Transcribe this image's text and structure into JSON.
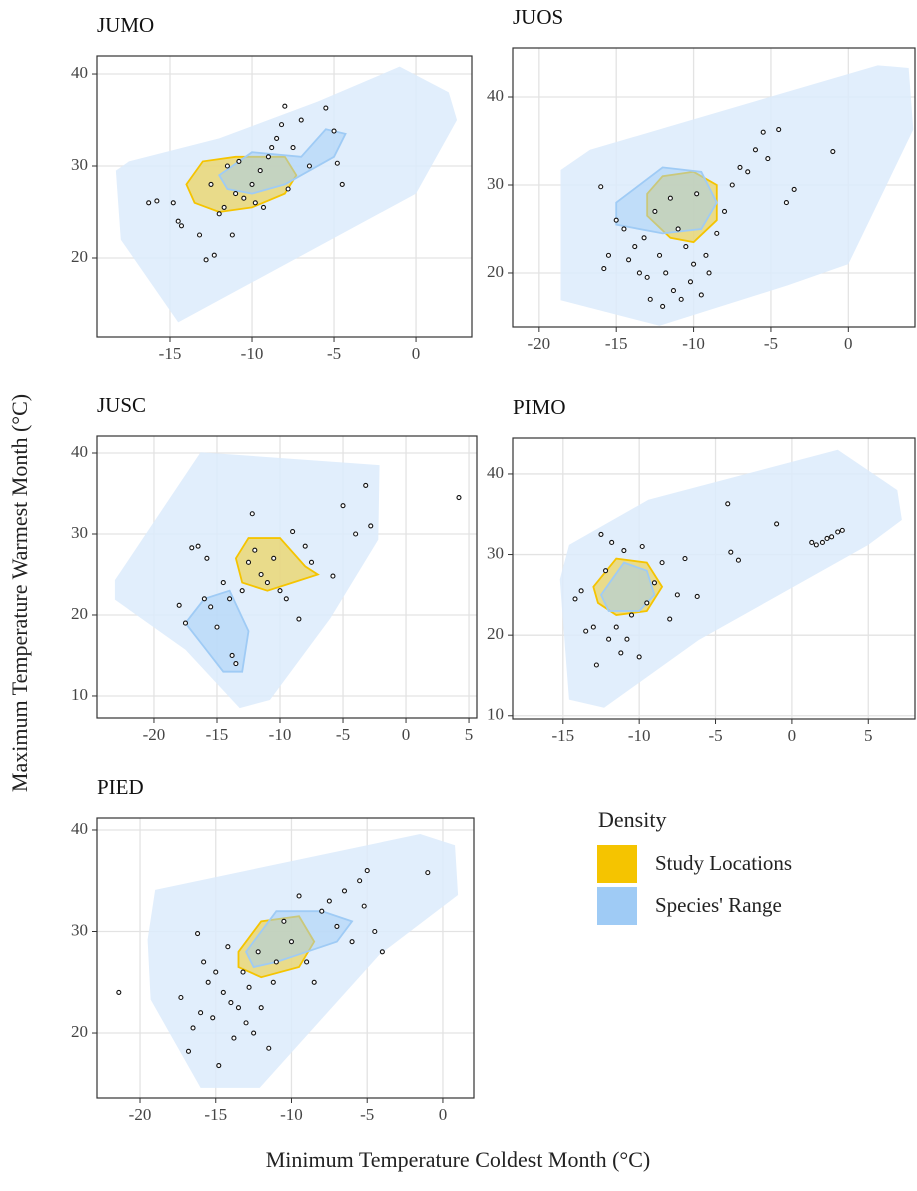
{
  "x_label": "Minimum Temperature Coldest Month (°C)",
  "y_label": "Maximum Temperature Warmest Month (°C)",
  "legend": {
    "title": "Density",
    "entries": [
      {
        "name": "Study Locations",
        "color": "#f5c400"
      },
      {
        "name": "Species' Range",
        "color": "#9fcbf5"
      }
    ]
  },
  "range_color": "#dcebfb",
  "chart_data": [
    {
      "type": "scatter",
      "title": "JUMO",
      "xlim": [
        -19.45,
        3.41
      ],
      "ylim": [
        11.41,
        41.96
      ],
      "xticks": [
        -15,
        -10,
        -5,
        0
      ],
      "yticks": [
        20,
        30,
        40
      ],
      "grid": true,
      "x": [
        -16.3,
        -15.8,
        -14.8,
        -14.5,
        -14.3,
        -13.2,
        -12.8,
        -12.3,
        -12.5,
        -12,
        -11.7,
        -11.5,
        -11.2,
        -11,
        -10.8,
        -10.5,
        -10,
        -9.8,
        -9.5,
        -9.3,
        -9,
        -8.8,
        -8.5,
        -8.2,
        -8,
        -7.8,
        -7.5,
        -7,
        -6.5,
        -5.5,
        -5,
        -4.8,
        -4.5
      ],
      "y": [
        26,
        26.2,
        26,
        24,
        23.5,
        22.5,
        19.8,
        20.3,
        28,
        24.8,
        25.5,
        30,
        22.5,
        27,
        30.5,
        26.5,
        28,
        26,
        29.5,
        25.5,
        31,
        32,
        33,
        34.5,
        36.5,
        27.5,
        32,
        35,
        30,
        36.3,
        33.8,
        30.3,
        28
      ],
      "range_hull": {
        "x": [
          -18.3,
          -17.5,
          -12,
          -6,
          -1,
          2,
          2.5,
          0,
          -14.5,
          -18
        ],
        "y": [
          29.5,
          30.5,
          33,
          37,
          40.8,
          38,
          35,
          27,
          13,
          22
        ]
      },
      "range_density": {
        "x": [
          -12,
          -10,
          -7,
          -5.5,
          -4.3,
          -5,
          -8,
          -10,
          -11.5
        ],
        "y": [
          29,
          31.5,
          31,
          34,
          33.5,
          31,
          28,
          27,
          27.5
        ]
      },
      "study_density": {
        "x": [
          -14,
          -13,
          -11,
          -8,
          -7.3,
          -8,
          -10,
          -12,
          -13.5
        ],
        "y": [
          28,
          30.5,
          31,
          31,
          29,
          27,
          25.5,
          25,
          26
        ]
      }
    },
    {
      "type": "scatter",
      "title": "JUOS",
      "xlim": [
        -21.67,
        4.31
      ],
      "ylim": [
        13.86,
        45.57
      ],
      "xticks": [
        -20,
        -15,
        -10,
        -5,
        0
      ],
      "yticks": [
        20,
        30,
        40
      ],
      "grid": true,
      "x": [
        -16,
        -15.8,
        -15.5,
        -15,
        -14.5,
        -14.2,
        -13.8,
        -13.5,
        -13.2,
        -13,
        -12.8,
        -12.5,
        -12.2,
        -12,
        -11.8,
        -11.5,
        -11.3,
        -11,
        -10.8,
        -10.5,
        -10.2,
        -10,
        -9.8,
        -9.5,
        -9.2,
        -9,
        -8.5,
        -8,
        -7.5,
        -7,
        -6.5,
        -6,
        -5.5,
        -5.2,
        -4.5,
        -4,
        -3.5,
        -1
      ],
      "y": [
        29.8,
        20.5,
        22,
        26,
        25,
        21.5,
        23,
        20,
        24,
        19.5,
        17,
        27,
        22,
        16.2,
        20,
        28.5,
        18,
        25,
        17,
        23,
        19,
        21,
        29,
        17.5,
        22,
        20,
        24.5,
        27,
        30,
        32,
        31.5,
        34,
        36,
        33,
        36.3,
        28,
        29.5,
        33.8
      ],
      "range_hull": {
        "x": [
          -18.6,
          -16.7,
          1.9,
          3.9,
          4.2,
          0,
          -3.9,
          -12.2,
          -18.6
        ],
        "y": [
          31.7,
          34,
          43.6,
          43.3,
          36.3,
          21,
          18.6,
          14,
          16.9
        ]
      },
      "range_density": {
        "x": [
          -15,
          -12,
          -9.5,
          -8.5,
          -9.5,
          -12,
          -15
        ],
        "y": [
          28,
          32,
          31.5,
          28,
          25,
          24.5,
          25.5
        ]
      },
      "study_density": {
        "x": [
          -13,
          -12,
          -10,
          -8.5,
          -8.5,
          -10,
          -11.5,
          -13
        ],
        "y": [
          29,
          31,
          31.5,
          30,
          26,
          23.5,
          24,
          26.5
        ]
      }
    },
    {
      "type": "scatter",
      "title": "JUSC",
      "xlim": [
        -24.52,
        5.63
      ],
      "ylim": [
        7.28,
        42.1
      ],
      "xticks": [
        -20,
        -15,
        -10,
        -5,
        0,
        5
      ],
      "yticks": [
        10,
        20,
        30,
        40
      ],
      "grid": true,
      "x": [
        -18,
        -17.5,
        -17,
        -16.5,
        -16,
        -15.8,
        -15.5,
        -15,
        -14.5,
        -14,
        -13.8,
        -13.5,
        -13,
        -12.5,
        -12.2,
        -12,
        -11.5,
        -11,
        -10.5,
        -10,
        -9.5,
        -9,
        -8.5,
        -8,
        -7.5,
        -5.8,
        -5,
        -4,
        -3.2,
        -2.8,
        4.2
      ],
      "y": [
        21.2,
        19,
        28.3,
        28.5,
        22,
        27,
        21,
        18.5,
        24,
        22,
        15,
        14,
        23,
        26.5,
        32.5,
        28,
        25,
        24,
        27,
        23,
        22,
        30.3,
        19.5,
        28.5,
        26.5,
        24.8,
        33.5,
        30,
        36,
        31,
        34.5
      ],
      "range_hull": {
        "x": [
          -23.1,
          -16.3,
          -2.1,
          -2.2,
          -6,
          -10.8,
          -13.2,
          -17.5,
          -23.1
        ],
        "y": [
          24.3,
          40.1,
          38.5,
          29.3,
          19.6,
          9.5,
          8.5,
          15.7,
          21.9
        ]
      },
      "range_density": {
        "x": [
          -17.5,
          -16,
          -14,
          -12.5,
          -13,
          -14.5,
          -16
        ],
        "y": [
          19,
          22,
          23,
          18,
          13,
          13,
          16
        ]
      },
      "study_density": {
        "x": [
          -13.5,
          -12.5,
          -10,
          -8,
          -7,
          -9,
          -11,
          -13
        ],
        "y": [
          27,
          29.5,
          29.5,
          26,
          25,
          24,
          23,
          24
        ]
      }
    },
    {
      "type": "scatter",
      "title": "PIMO",
      "xlim": [
        -18.26,
        8.06
      ],
      "ylim": [
        9.6,
        44.46
      ],
      "xticks": [
        -15,
        -10,
        -5,
        0,
        5
      ],
      "yticks": [
        10,
        20,
        30,
        40
      ],
      "grid": true,
      "x": [
        -14.2,
        -13.8,
        -13.5,
        -13,
        -12.8,
        -12.5,
        -12.2,
        -12,
        -11.8,
        -11.5,
        -11.2,
        -11,
        -10.8,
        -10.5,
        -10,
        -9.8,
        -9.5,
        -9,
        -8.5,
        -8,
        -7.5,
        -7,
        -6.2,
        -4.2,
        -4,
        -3.5,
        -1,
        1.3,
        1.6,
        2,
        2.3,
        2.6,
        3,
        3.3
      ],
      "y": [
        24.5,
        25.5,
        20.5,
        21,
        16.3,
        32.5,
        28,
        19.5,
        31.5,
        21,
        17.8,
        30.5,
        19.5,
        22.5,
        17.3,
        31,
        24,
        26.5,
        29,
        22,
        25,
        29.5,
        24.8,
        36.3,
        30.3,
        29.3,
        33.8,
        31.5,
        31.2,
        31.5,
        32,
        32.2,
        32.8,
        33
      ],
      "range_hull": {
        "x": [
          -15.2,
          -14.6,
          -9.4,
          3,
          6.9,
          7.2,
          5,
          -6.1,
          -12.3,
          -14.6
        ],
        "y": [
          26.9,
          31.2,
          36.8,
          43,
          38,
          34.3,
          31.2,
          19.4,
          11,
          12
        ]
      },
      "range_density": {
        "x": [
          -12.5,
          -11,
          -9.5,
          -9,
          -10,
          -12
        ],
        "y": [
          25,
          29,
          28,
          25,
          23,
          23
        ]
      },
      "study_density": {
        "x": [
          -13,
          -11.5,
          -9.5,
          -8.5,
          -9.5,
          -11.5,
          -12.7
        ],
        "y": [
          26,
          29.5,
          29,
          26,
          23,
          22.5,
          24
        ]
      }
    },
    {
      "type": "scatter",
      "title": "PIED",
      "xlim": [
        -22.84,
        2.05
      ],
      "ylim": [
        13.6,
        41.18
      ],
      "xticks": [
        -20,
        -15,
        -10,
        -5,
        0
      ],
      "yticks": [
        20,
        30,
        40
      ],
      "grid": true,
      "x": [
        -21.4,
        -17.3,
        -16.8,
        -16.5,
        -16.2,
        -16,
        -15.8,
        -15.5,
        -15.2,
        -15,
        -14.8,
        -14.5,
        -14.2,
        -14,
        -13.8,
        -13.5,
        -13.2,
        -13,
        -12.8,
        -12.5,
        -12.2,
        -12,
        -11.5,
        -11.2,
        -11,
        -10.5,
        -10,
        -9.5,
        -9,
        -8.5,
        -8,
        -7.5,
        -7,
        -6.5,
        -6,
        -5.5,
        -5.2,
        -5,
        -4.5,
        -4,
        -1
      ],
      "y": [
        24,
        23.5,
        18.2,
        20.5,
        29.8,
        22,
        27,
        25,
        21.5,
        26,
        16.8,
        24,
        28.5,
        23,
        19.5,
        22.5,
        26,
        21,
        24.5,
        20,
        28,
        22.5,
        18.5,
        25,
        27,
        31,
        29,
        33.5,
        27,
        25,
        32,
        33,
        30.5,
        34,
        29,
        35,
        32.5,
        36,
        30,
        28,
        35.8
      ],
      "range_hull": {
        "x": [
          -19.5,
          -19,
          -1.5,
          0.8,
          1,
          -4.2,
          -12.1,
          -16,
          -19.3
        ],
        "y": [
          29.2,
          34.1,
          39.6,
          38.5,
          33.6,
          27.7,
          14.6,
          14.6,
          23.3
        ]
      },
      "range_density": {
        "x": [
          -13,
          -11,
          -8,
          -6,
          -7,
          -9,
          -11,
          -12.5
        ],
        "y": [
          28,
          32,
          32,
          31,
          29,
          28,
          27,
          26.5
        ]
      },
      "study_density": {
        "x": [
          -13.5,
          -12,
          -9.5,
          -8.5,
          -9.5,
          -12,
          -13.5
        ],
        "y": [
          28,
          31,
          31.5,
          29,
          26.5,
          25.5,
          26.5
        ]
      }
    }
  ]
}
